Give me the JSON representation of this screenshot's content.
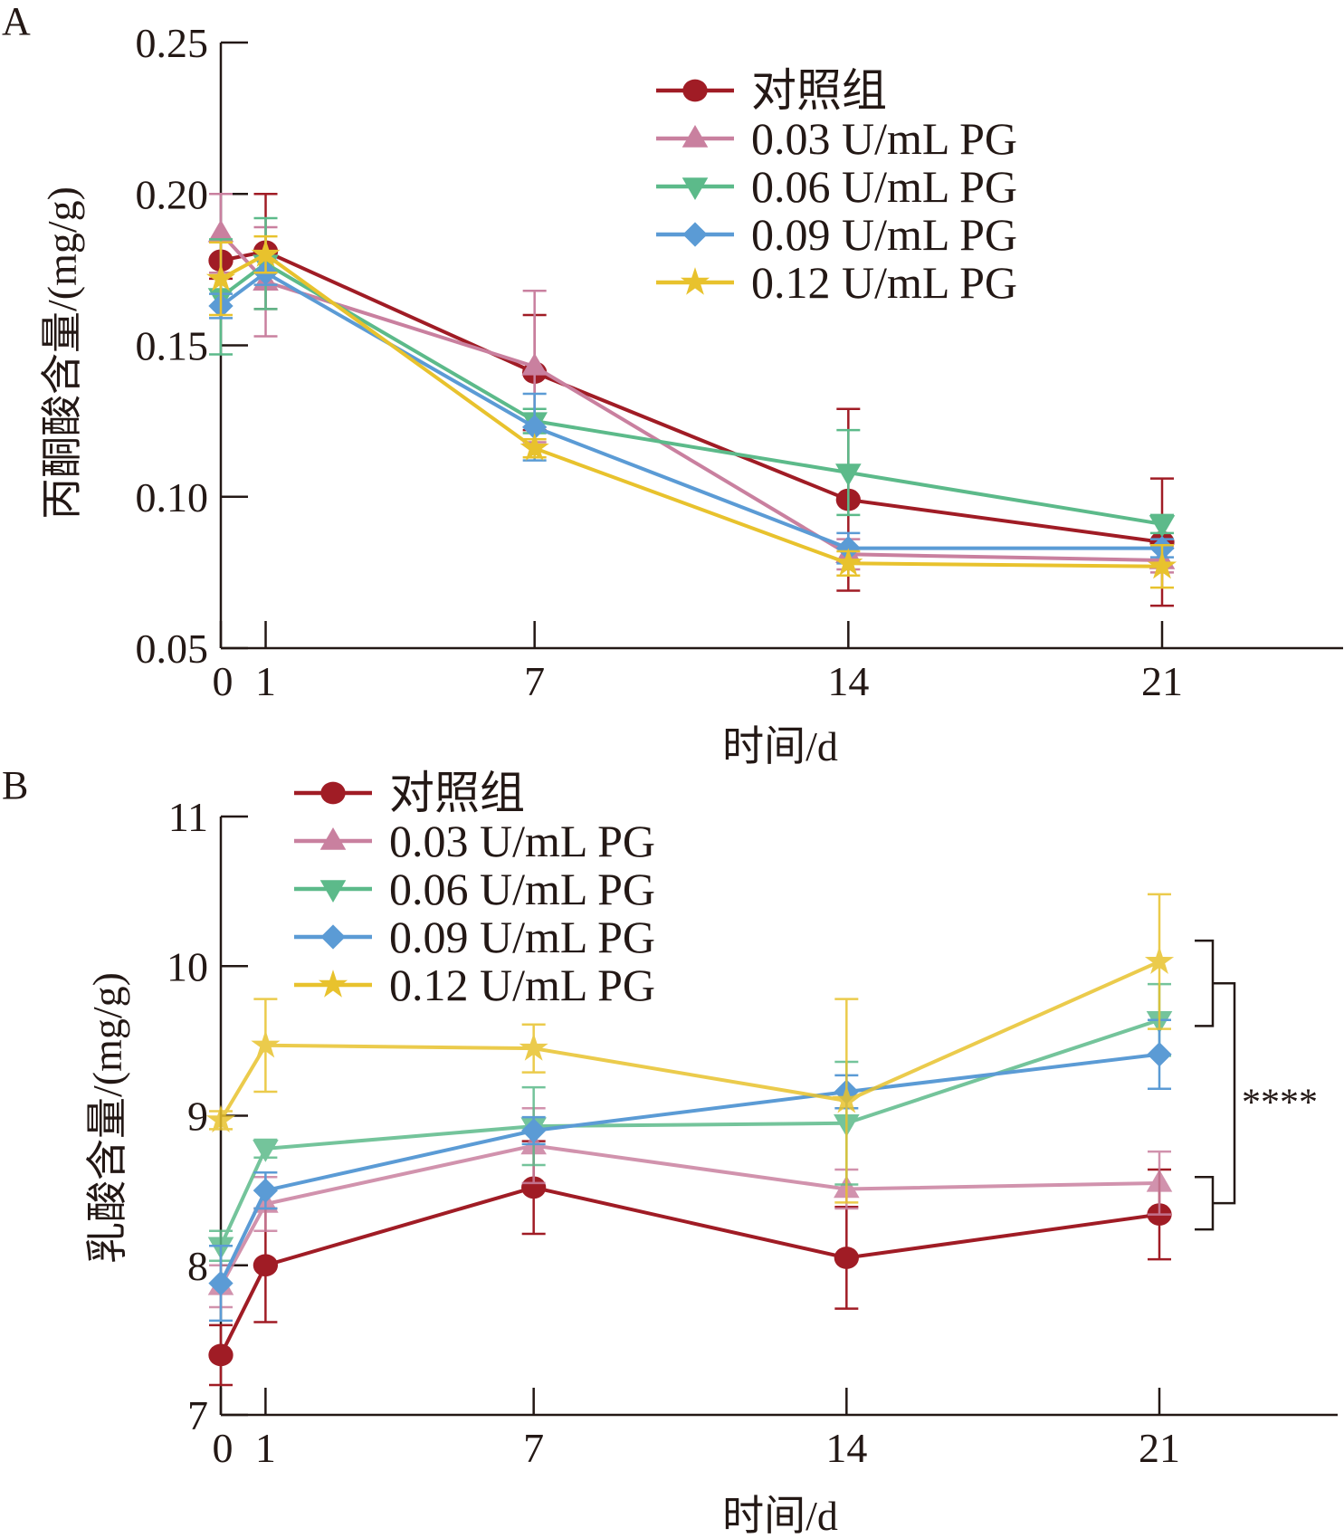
{
  "chart_data": [
    {
      "type": "line",
      "panel_label": "A",
      "title": "",
      "xlabel": "时间/d",
      "ylabel": "丙酮酸含量/(mg/g)",
      "x": [
        0,
        1,
        7,
        14,
        21
      ],
      "x_tick_labels": [
        "0",
        "1",
        "7",
        "14",
        "21"
      ],
      "xlim": [
        0,
        24.5
      ],
      "ylim": [
        0.05,
        0.25
      ],
      "y_ticks": [
        0.05,
        0.1,
        0.15,
        0.2,
        0.25
      ],
      "y_tick_labels": [
        "0.05",
        "0.10",
        "0.15",
        "0.20",
        "0.25"
      ],
      "grid": false,
      "legend_position": "top-right",
      "series": [
        {
          "name": "对照组",
          "marker": "circle",
          "color": "#a01c25",
          "values": [
            0.178,
            0.181,
            0.141,
            0.099,
            0.085
          ],
          "errors": [
            0.006,
            0.019,
            0.019,
            0.03,
            0.021
          ]
        },
        {
          "name": "0.03 U/mL PG",
          "marker": "triangle-up",
          "color": "#c9809f",
          "values": [
            0.187,
            0.171,
            0.143,
            0.081,
            0.079
          ],
          "errors": [
            0.013,
            0.018,
            0.025,
            0.005,
            0.004
          ]
        },
        {
          "name": "0.06 U/mL PG",
          "marker": "triangle-down",
          "color": "#5cba8a",
          "values": [
            0.166,
            0.177,
            0.125,
            0.108,
            0.091
          ],
          "errors": [
            0.019,
            0.015,
            0.004,
            0.014,
            0.003
          ]
        },
        {
          "name": "0.09 U/mL PG",
          "marker": "diamond",
          "color": "#5b9bd5",
          "values": [
            0.163,
            0.174,
            0.123,
            0.083,
            0.083
          ],
          "errors": [
            0.004,
            0.004,
            0.011,
            0.005,
            0.003
          ]
        },
        {
          "name": "0.12 U/mL PG",
          "marker": "star",
          "color": "#e8c22d",
          "values": [
            0.172,
            0.18,
            0.116,
            0.078,
            0.077
          ],
          "errors": [
            0.012,
            0.006,
            0.003,
            0.004,
            0.007
          ]
        }
      ]
    },
    {
      "type": "line",
      "panel_label": "B",
      "title": "",
      "xlabel": "时间/d",
      "ylabel": "乳酸含量/(mg/g)",
      "x": [
        0,
        1,
        7,
        14,
        21
      ],
      "x_tick_labels": [
        "0",
        "1",
        "7",
        "14",
        "21"
      ],
      "xlim": [
        0,
        24.5
      ],
      "ylim": [
        7,
        11
      ],
      "y_ticks": [
        7,
        8,
        9,
        10,
        11
      ],
      "y_tick_labels": [
        "7",
        "8",
        "9",
        "10",
        "11"
      ],
      "grid": false,
      "legend_position": "top-left",
      "annotation": {
        "text": "****",
        "type": "significance-bracket",
        "groups": [
          [
            "0.12 U/mL PG",
            "0.09 U/mL PG"
          ],
          [
            "0.03 U/mL PG",
            "对照组"
          ]
        ]
      },
      "series": [
        {
          "name": "对照组",
          "marker": "circle",
          "color": "#a01c25",
          "values": [
            7.4,
            8.0,
            8.52,
            8.05,
            8.34
          ],
          "errors": [
            0.2,
            0.38,
            0.31,
            0.34,
            0.3
          ]
        },
        {
          "name": "0.03 U/mL PG",
          "marker": "triangle-up",
          "color": "#c9809f",
          "values": [
            7.86,
            8.41,
            8.8,
            8.51,
            8.55
          ],
          "errors": [
            0.14,
            0.18,
            0.25,
            0.13,
            0.21
          ]
        },
        {
          "name": "0.06 U/mL PG",
          "marker": "triangle-down",
          "color": "#5cba8a",
          "values": [
            8.13,
            8.78,
            8.93,
            8.95,
            9.64
          ],
          "errors": [
            0.1,
            0.06,
            0.26,
            0.41,
            0.24
          ]
        },
        {
          "name": "0.09 U/mL PG",
          "marker": "diamond",
          "color": "#5b9bd5",
          "values": [
            7.88,
            8.5,
            8.9,
            9.16,
            9.41
          ],
          "errors": [
            0.25,
            0.12,
            0.09,
            0.11,
            0.23
          ]
        },
        {
          "name": "0.12 U/mL PG",
          "marker": "star",
          "color": "#e8c22d",
          "values": [
            8.97,
            9.47,
            9.45,
            9.1,
            10.03
          ],
          "errors": [
            0.06,
            0.31,
            0.16,
            0.68,
            0.45
          ]
        }
      ]
    }
  ]
}
